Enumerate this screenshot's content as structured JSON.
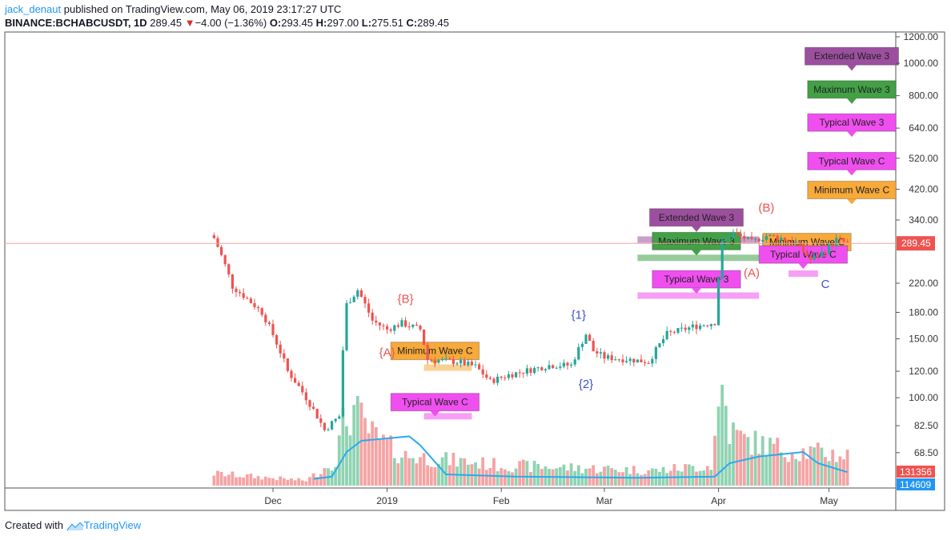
{
  "header": {
    "user": "jack_denaut",
    "published_text": "published on TradingView.com, May 06, 2019 23:17:27 UTC",
    "symbol": "BINANCE:BCHABCUSDT, 1D",
    "last": "289.45",
    "change": "−4.00 (−1.36%)",
    "open_label": "O:",
    "open": "293.45",
    "high_label": "H:",
    "high": "297.00",
    "low_label": "L:",
    "low": "275.51",
    "close_label": "C:",
    "close": "289.45"
  },
  "footer": {
    "created_with": "Created with",
    "brand": "TradingView"
  },
  "colors": {
    "up": "#26a69a",
    "down": "#ef5350",
    "volume_up": "#8fd3b2",
    "volume_down": "#f5a3a3",
    "volume_ma": "#29a9f0",
    "wave_extended": "#9c4f9e",
    "wave_maximum": "#43a047",
    "wave_typical": "#f04ff0",
    "wave_minimum": "#f7a93a",
    "label_red": "#ef5350",
    "label_blue": "#3f51c9"
  },
  "chart_data": {
    "type": "candlestick",
    "y_scale": "log",
    "y_ticks": [
      "1200.00",
      "1000.00",
      "800.00",
      "640.00",
      "520.00",
      "420.00",
      "340.00",
      "220.00",
      "180.00",
      "150.00",
      "120.00",
      "100.00",
      "82.50",
      "68.50"
    ],
    "x_ticks": [
      {
        "date": "2018-12-01",
        "label": "Dec"
      },
      {
        "date": "2019-01-01",
        "label": "2019"
      },
      {
        "date": "2019-02-01",
        "label": "Feb"
      },
      {
        "date": "2019-03-01",
        "label": "Mar"
      },
      {
        "date": "2019-04-01",
        "label": "Apr"
      },
      {
        "date": "2019-05-01",
        "label": "May"
      }
    ],
    "last_price": {
      "value": 289.45,
      "label": "289.45"
    },
    "volume_badges": [
      {
        "value": "131356",
        "color": "#ef5350"
      },
      {
        "value": "114609",
        "color": "#2196f3"
      }
    ],
    "key_points": [
      {
        "date": "2018-11-15",
        "price": 300
      },
      {
        "date": "2018-11-20",
        "price": 215
      },
      {
        "date": "2018-11-28",
        "price": 180
      },
      {
        "date": "2018-12-05",
        "price": 120
      },
      {
        "date": "2018-12-15",
        "price": 80
      },
      {
        "date": "2018-12-19",
        "price": 88
      },
      {
        "date": "2018-12-21",
        "price": 190
      },
      {
        "date": "2018-12-24",
        "price": 210
      },
      {
        "date": "2018-12-28",
        "price": 170
      },
      {
        "date": "2019-01-01",
        "price": 160
      },
      {
        "date": "2019-01-05",
        "price": 167
      },
      {
        "date": "2019-01-10",
        "price": 160
      },
      {
        "date": "2019-01-12",
        "price": 130
      },
      {
        "date": "2019-01-20",
        "price": 128
      },
      {
        "date": "2019-01-25",
        "price": 124
      },
      {
        "date": "2019-01-29",
        "price": 112
      },
      {
        "date": "2019-02-03",
        "price": 117
      },
      {
        "date": "2019-02-10",
        "price": 122
      },
      {
        "date": "2019-02-14",
        "price": 125
      },
      {
        "date": "2019-02-20",
        "price": 125
      },
      {
        "date": "2019-02-24",
        "price": 155
      },
      {
        "date": "2019-02-26",
        "price": 138
      },
      {
        "date": "2019-03-01",
        "price": 132
      },
      {
        "date": "2019-03-08",
        "price": 130
      },
      {
        "date": "2019-03-13",
        "price": 128
      },
      {
        "date": "2019-03-18",
        "price": 155
      },
      {
        "date": "2019-03-25",
        "price": 163
      },
      {
        "date": "2019-03-31",
        "price": 168
      },
      {
        "date": "2019-04-02",
        "price": 290
      },
      {
        "date": "2019-04-05",
        "price": 310
      },
      {
        "date": "2019-04-08",
        "price": 300
      },
      {
        "date": "2019-04-10",
        "price": 292
      },
      {
        "date": "2019-04-14",
        "price": 305
      },
      {
        "date": "2019-04-18",
        "price": 300
      },
      {
        "date": "2019-04-22",
        "price": 290
      },
      {
        "date": "2019-04-26",
        "price": 258
      },
      {
        "date": "2019-04-30",
        "price": 275
      },
      {
        "date": "2019-05-03",
        "price": 297
      },
      {
        "date": "2019-05-06",
        "price": 289.45
      }
    ],
    "volume_key_points": [
      {
        "date": "2018-11-15",
        "value": 0.12
      },
      {
        "date": "2018-12-10",
        "value": 0.05
      },
      {
        "date": "2018-12-18",
        "value": 0.25
      },
      {
        "date": "2018-12-20",
        "value": 0.6
      },
      {
        "date": "2018-12-23",
        "value": 0.75
      },
      {
        "date": "2018-12-28",
        "value": 0.5
      },
      {
        "date": "2019-01-05",
        "value": 0.3
      },
      {
        "date": "2019-02-01",
        "value": 0.2
      },
      {
        "date": "2019-03-15",
        "value": 0.15
      },
      {
        "date": "2019-03-30",
        "value": 0.2
      },
      {
        "date": "2019-04-02",
        "value": 1.0
      },
      {
        "date": "2019-04-04",
        "value": 0.55
      },
      {
        "date": "2019-04-08",
        "value": 0.45
      },
      {
        "date": "2019-04-20",
        "value": 0.35
      },
      {
        "date": "2019-05-06",
        "value": 0.3
      }
    ],
    "volume_ma": [
      {
        "date": "2018-12-12",
        "value": 0.06
      },
      {
        "date": "2018-12-17",
        "value": 0.08
      },
      {
        "date": "2018-12-21",
        "value": 0.3
      },
      {
        "date": "2018-12-25",
        "value": 0.4
      },
      {
        "date": "2019-01-07",
        "value": 0.44
      },
      {
        "date": "2019-01-10",
        "value": 0.36
      },
      {
        "date": "2019-01-17",
        "value": 0.1
      },
      {
        "date": "2019-02-05",
        "value": 0.08
      },
      {
        "date": "2019-03-10",
        "value": 0.07
      },
      {
        "date": "2019-03-31",
        "value": 0.08
      },
      {
        "date": "2019-04-04",
        "value": 0.2
      },
      {
        "date": "2019-04-12",
        "value": 0.26
      },
      {
        "date": "2019-04-24",
        "value": 0.3
      },
      {
        "date": "2019-04-28",
        "value": 0.2
      },
      {
        "date": "2019-05-06",
        "value": 0.12
      }
    ],
    "wave_labels": [
      {
        "text": "{A}",
        "date": "2019-01-01",
        "price": 133,
        "color": "#ef5350"
      },
      {
        "text": "{B}",
        "date": "2019-01-06",
        "price": 192,
        "color": "#ef5350"
      },
      {
        "text": "{1}",
        "date": "2019-02-22",
        "price": 172,
        "color": "#3f51c9"
      },
      {
        "text": "{2}",
        "date": "2019-02-24",
        "price": 107,
        "color": "#3f51c9"
      },
      {
        "text": "(A)",
        "date": "2019-04-10",
        "price": 230,
        "color": "#ef5350"
      },
      {
        "text": "(B)",
        "date": "2019-04-14",
        "price": 360,
        "color": "#ef5350"
      },
      {
        "text": "C",
        "date": "2019-04-30",
        "price": 213,
        "color": "#3f51c9"
      }
    ],
    "zones": [
      {
        "label": "Minimum Wave C",
        "color": "#f7a93a",
        "start": "2019-01-11",
        "end": "2019-01-24",
        "price": 123,
        "box_date": "2019-01-14",
        "box_price": 138
      },
      {
        "label": "Typical Wave C",
        "color": "#f04ff0",
        "start": "2019-01-11",
        "end": "2019-01-24",
        "price": 88,
        "box_date": "2019-01-14",
        "box_price": 97
      },
      {
        "label": "Extended Wave 3",
        "color": "#9c4f9e",
        "start": "2019-03-10",
        "end": "2019-04-12",
        "price": 297,
        "box_date": "2019-03-26",
        "box_price": 346
      },
      {
        "label": "Maximum Wave 3",
        "color": "#43a047",
        "start": "2019-03-10",
        "end": "2019-04-12",
        "price": 262,
        "box_date": "2019-03-26",
        "box_price": 294
      },
      {
        "label": "Typical Wave 3",
        "color": "#f04ff0",
        "start": "2019-03-10",
        "end": "2019-04-12",
        "price": 202,
        "box_date": "2019-03-26",
        "box_price": 226
      },
      {
        "label": "Minimum Wave C",
        "color": "#f7a93a",
        "start": "2019-04-20",
        "end": "2019-04-28",
        "price": 260,
        "box_date": "2019-04-25",
        "box_price": 292
      },
      {
        "label": "Typical Wave C",
        "color": "#f04ff0",
        "start": "2019-04-20",
        "end": "2019-04-28",
        "price": 235,
        "box_date": "2019-04-24",
        "box_price": 268
      }
    ],
    "target_boxes": [
      {
        "label": "Extended Wave 3",
        "color": "#9c4f9e",
        "price": 1050
      },
      {
        "label": "Maximum Wave 3",
        "color": "#43a047",
        "price": 835
      },
      {
        "label": "Typical Wave 3",
        "color": "#f04ff0",
        "price": 665
      },
      {
        "label": "Typical Wave C",
        "color": "#f04ff0",
        "price": 510
      },
      {
        "label": "Minimum Wave C",
        "color": "#f7a93a",
        "price": 418
      }
    ]
  }
}
